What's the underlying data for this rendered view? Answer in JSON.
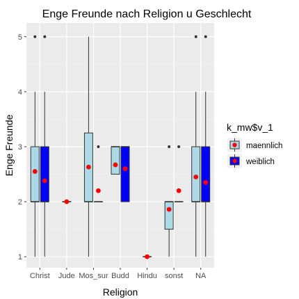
{
  "chart_data": {
    "type": "boxplot",
    "title": "Enge Freunde nach Religion u Geschlecht",
    "xlabel": "Religion",
    "ylabel": "Enge Freunde",
    "categories": [
      "Christ",
      "Jude",
      "Mos_sur",
      "Budd",
      "Hindu",
      "sonst",
      "NA"
    ],
    "ylim": [
      0.8,
      5.25
    ],
    "yticks": [
      1,
      2,
      3,
      4,
      5
    ],
    "grid": true,
    "legend": {
      "title": "k_mw$v_1",
      "position": "right"
    },
    "series": [
      {
        "name": "maennlich",
        "fill": "#add8e6",
        "mean_color": "#ff0000",
        "boxes": [
          {
            "category": "Christ",
            "min": 1,
            "q1": 2,
            "median": 2,
            "q3": 3,
            "max": 4,
            "outliers": [
              5
            ],
            "mean": 2.55
          },
          {
            "category": "Jude",
            "min": 2,
            "q1": 2,
            "median": 2,
            "q3": 2,
            "max": 2,
            "outliers": [],
            "mean": 2.0
          },
          {
            "category": "Mos_sur",
            "min": 1,
            "q1": 2,
            "median": 2,
            "q3": 3.25,
            "max": 5,
            "outliers": [],
            "mean": 2.63
          },
          {
            "category": "Budd",
            "min": 2.5,
            "q1": 2.5,
            "median": 3,
            "q3": 3,
            "max": 3,
            "outliers": [],
            "mean": 2.67
          },
          {
            "category": "Hindu",
            "min": 1,
            "q1": 1,
            "median": 1,
            "q3": 1,
            "max": 1,
            "outliers": [],
            "mean": 1.0
          },
          {
            "category": "sonst",
            "min": 1,
            "q1": 1.5,
            "median": 2,
            "q3": 2,
            "max": 2,
            "outliers": [
              3
            ],
            "mean": 1.86
          },
          {
            "category": "NA",
            "min": 1,
            "q1": 2,
            "median": 2,
            "q3": 3,
            "max": 4,
            "outliers": [
              5
            ],
            "mean": 2.45
          }
        ]
      },
      {
        "name": "weiblich",
        "fill": "#0000ff",
        "mean_color": "#ff0000",
        "boxes": [
          {
            "category": "Christ",
            "min": 1,
            "q1": 2,
            "median": 2,
            "q3": 3,
            "max": 4,
            "outliers": [
              5
            ],
            "mean": 2.38
          },
          {
            "category": "Mos_sur",
            "min": 2,
            "q1": 2,
            "median": 2,
            "q3": 2,
            "max": 2,
            "outliers": [
              3
            ],
            "mean": 2.2
          },
          {
            "category": "Budd",
            "min": 2,
            "q1": 2,
            "median": 3,
            "q3": 3,
            "max": 3,
            "outliers": [],
            "mean": 2.6
          },
          {
            "category": "sonst",
            "min": 2,
            "q1": 2,
            "median": 2,
            "q3": 2,
            "max": 2,
            "outliers": [
              3
            ],
            "mean": 2.2
          },
          {
            "category": "NA",
            "min": 1,
            "q1": 2,
            "median": 2,
            "q3": 3,
            "max": 4,
            "outliers": [
              5
            ],
            "mean": 2.35
          }
        ]
      }
    ]
  }
}
